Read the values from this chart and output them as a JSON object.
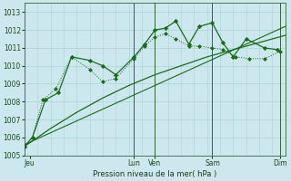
{
  "xlabel": "Pression niveau de la mer( hPa )",
  "bg_color": "#cce8ee",
  "grid_color": "#aad4d4",
  "line_color": "#1a6b1a",
  "ylim": [
    1005,
    1013.5
  ],
  "xlim": [
    0,
    10
  ],
  "xtick_labels": [
    "Jeu",
    "",
    "Lun",
    "Ven",
    "",
    "Sam",
    "",
    "Dim"
  ],
  "xtick_positions": [
    0.2,
    2,
    4.2,
    5.0,
    6.0,
    7.2,
    8.5,
    9.8
  ],
  "ytick_values": [
    1005,
    1006,
    1007,
    1008,
    1009,
    1010,
    1011,
    1012,
    1013
  ],
  "vline_positions": [
    4.2,
    5.0,
    7.2,
    9.8
  ],
  "line_smooth_x": [
    0,
    1,
    2,
    3,
    4,
    5,
    6,
    7,
    8,
    9,
    10
  ],
  "line_smooth_y": [
    1005.5,
    1006.5,
    1007.4,
    1008.2,
    1008.9,
    1009.5,
    1010.0,
    1010.5,
    1010.9,
    1011.3,
    1011.7
  ],
  "line_dotted_x": [
    0,
    0.3,
    0.7,
    1.2,
    1.8,
    2.5,
    3.0,
    3.5,
    4.2,
    4.6,
    5.0,
    5.4,
    5.8,
    6.3,
    6.7,
    7.2,
    7.6,
    8.1,
    8.6,
    9.2,
    9.8
  ],
  "line_dotted_y": [
    1005.5,
    1006.0,
    1008.1,
    1008.7,
    1010.5,
    1009.8,
    1009.1,
    1009.3,
    1010.4,
    1011.1,
    1011.6,
    1011.8,
    1011.5,
    1011.1,
    1011.1,
    1011.0,
    1010.9,
    1010.5,
    1010.4,
    1010.4,
    1010.8
  ],
  "line_diamond_x": [
    0,
    0.3,
    0.8,
    1.3,
    1.8,
    2.5,
    3.0,
    3.5,
    4.2,
    4.6,
    5.0,
    5.4,
    5.8,
    6.3,
    6.7,
    7.2,
    7.6,
    8.0,
    8.5,
    9.2,
    9.7
  ],
  "line_diamond_y": [
    1005.5,
    1006.0,
    1008.1,
    1008.5,
    1010.5,
    1010.3,
    1010.0,
    1009.5,
    1010.5,
    1011.2,
    1012.0,
    1012.1,
    1012.5,
    1011.2,
    1012.2,
    1012.4,
    1011.3,
    1010.5,
    1011.5,
    1011.0,
    1010.9
  ],
  "line_trend_x": [
    0,
    10
  ],
  "line_trend_y": [
    1005.6,
    1012.2
  ]
}
